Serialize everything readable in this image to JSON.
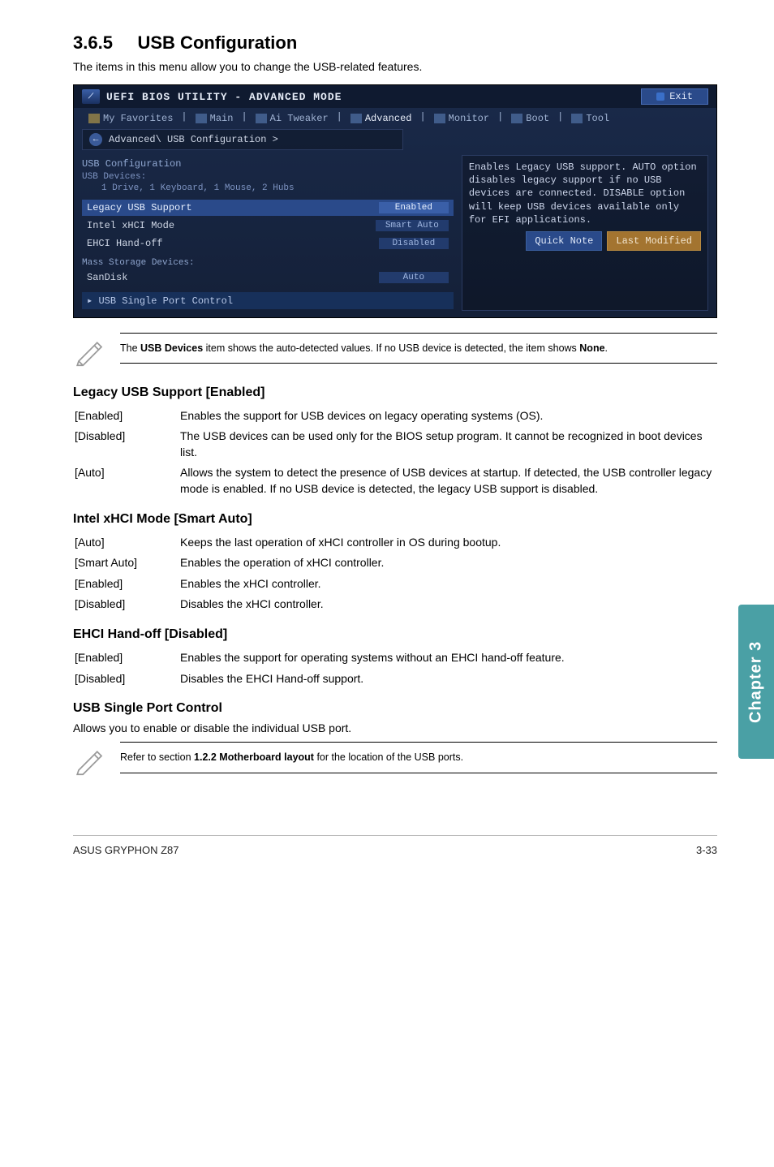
{
  "heading_number": "3.6.5",
  "heading_title": "USB Configuration",
  "heading_sub": "The items in this menu allow you to change the USB-related features.",
  "bios": {
    "title": "UEFI BIOS UTILITY - ADVANCED MODE",
    "exit": "Exit",
    "tabs": {
      "fav": "My Favorites",
      "main": "Main",
      "tweaker": "Ai Tweaker",
      "advanced": "Advanced",
      "monitor": "Monitor",
      "boot": "Boot",
      "tool": "Tool"
    },
    "breadcrumb": "Advanced\\ USB Configuration >",
    "left": {
      "cfg_heading": "USB Configuration",
      "devices_heading": "USB Devices:",
      "devices_line": "1 Drive, 1 Keyboard, 1 Mouse, 2 Hubs",
      "rows": [
        {
          "label": "Legacy USB Support",
          "value": "Enabled",
          "sel": true
        },
        {
          "label": "Intel xHCI Mode",
          "value": "Smart Auto",
          "sel": false
        },
        {
          "label": "EHCI Hand-off",
          "value": "Disabled",
          "sel": false
        }
      ],
      "storage_heading": "Mass Storage Devices:",
      "storage_row": {
        "label": "SanDisk",
        "value": "Auto"
      },
      "single": "USB Single Port Control"
    },
    "help": "Enables Legacy USB support. AUTO option disables legacy support if no USB devices are connected. DISABLE option will keep USB devices available only for EFI applications.",
    "footer": {
      "note": "Quick Note",
      "mod": "Last Modified"
    }
  },
  "note1": "The <b>USB Devices</b> item shows the auto-detected values. If no USB device is detected, the item shows <b>None</b>.",
  "legacy": {
    "title": "Legacy USB Support [Enabled]",
    "rows": [
      {
        "k": "[Enabled]",
        "v": "Enables the support for USB devices on legacy operating systems (OS)."
      },
      {
        "k": "[Disabled]",
        "v": "The USB devices can be used only for the BIOS setup program. It cannot be recognized in boot devices list."
      },
      {
        "k": "[Auto]",
        "v": "Allows the system to detect the presence of USB devices at startup. If detected, the USB controller legacy mode is enabled. If no USB device is detected, the legacy USB support is disabled."
      }
    ]
  },
  "xhci": {
    "title": "Intel xHCI Mode [Smart Auto]",
    "rows": [
      {
        "k": "[Auto]",
        "v": "Keeps the last operation of xHCI controller in OS during bootup."
      },
      {
        "k": "[Smart Auto]",
        "v": "Enables the operation of xHCI controller."
      },
      {
        "k": "[Enabled]",
        "v": "Enables the xHCI controller."
      },
      {
        "k": "[Disabled]",
        "v": "Disables the xHCI controller."
      }
    ]
  },
  "ehci": {
    "title": "EHCI Hand-off [Disabled]",
    "rows": [
      {
        "k": "[Enabled]",
        "v": "Enables the support for operating systems without an EHCI hand-off feature."
      },
      {
        "k": "[Disabled]",
        "v": "Disables the EHCI Hand-off support."
      }
    ]
  },
  "single": {
    "title": "USB Single Port Control",
    "desc": "Allows you to enable or disable the individual USB port."
  },
  "note2": "Refer to section <b>1.2.2 Motherboard layout</b> for the location of the USB ports.",
  "chapter_tab": "Chapter 3",
  "footer_left": "ASUS GRYPHON Z87",
  "footer_right": "3-33"
}
